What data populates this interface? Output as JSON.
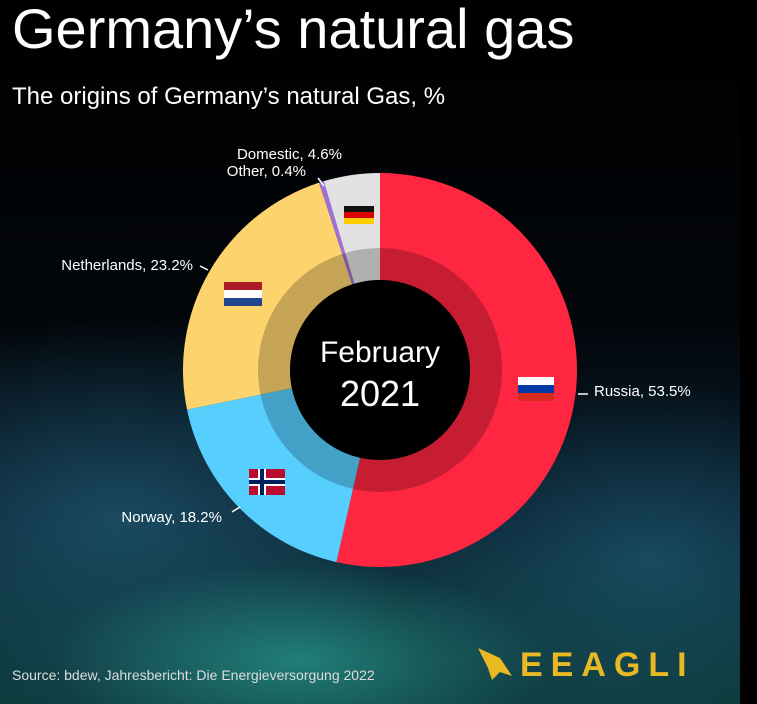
{
  "chart_data": {
    "type": "pie",
    "title": "Germany’s natural gas",
    "subtitle": "The origins of Germany’s natural Gas, %",
    "center_label": [
      "February",
      "2021"
    ],
    "values": [
      53.5,
      18.2,
      23.2,
      0.4,
      4.6
    ],
    "value_labels": [
      "Russia, 53.5%",
      "Norway, 18.2%",
      "Netherlands, 23.2%",
      "Other, 0.4%",
      "Domestic, 4.6%"
    ],
    "colors": [
      "#ff2641",
      "#56cfff",
      "#fdd36d",
      "#a070d8",
      "#e2e2e2"
    ],
    "source": "Source: bdew, Jahresbericht: Die Energieversorgung 2022",
    "logo": "EEAGLI"
  }
}
